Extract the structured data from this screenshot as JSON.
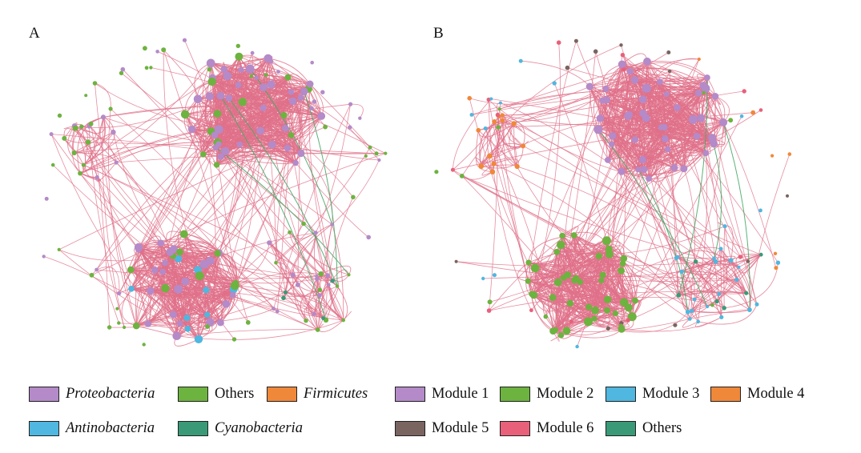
{
  "panels": [
    {
      "label": "A"
    },
    {
      "label": "B"
    }
  ],
  "colors": {
    "edge_pink": "#e0708a",
    "edge_green": "#4aa86a",
    "proteobacteria": "#b48ac8",
    "others_green": "#6db33f",
    "firmicutes": "#f0883a",
    "antinobacteria": "#4fb7e0",
    "cyanobacteria": "#3a9a78",
    "module5": "#7a6460",
    "module6": "#e8607a"
  },
  "legend_a": [
    {
      "label": "Proteobacteria",
      "color": "#b48ac8",
      "italic": true
    },
    {
      "label": "Others",
      "color": "#6db33f",
      "italic": false
    },
    {
      "label": "Firmicutes",
      "color": "#f0883a",
      "italic": true
    },
    {
      "label": "Antinobacteria",
      "color": "#4fb7e0",
      "italic": true
    },
    {
      "label": "Cyanobacteria",
      "color": "#3a9a78",
      "italic": true
    }
  ],
  "legend_b": [
    {
      "label": "Module 1",
      "color": "#b48ac8",
      "italic": false
    },
    {
      "label": "Module 2",
      "color": "#6db33f",
      "italic": false
    },
    {
      "label": "Module 3",
      "color": "#4fb7e0",
      "italic": false
    },
    {
      "label": "Module 4",
      "color": "#f0883a",
      "italic": false
    },
    {
      "label": "Module 5",
      "color": "#7a6460",
      "italic": false
    },
    {
      "label": "Module 6",
      "color": "#e8607a",
      "italic": false
    },
    {
      "label": "Others",
      "color": "#3a9a78",
      "italic": false
    }
  ]
}
